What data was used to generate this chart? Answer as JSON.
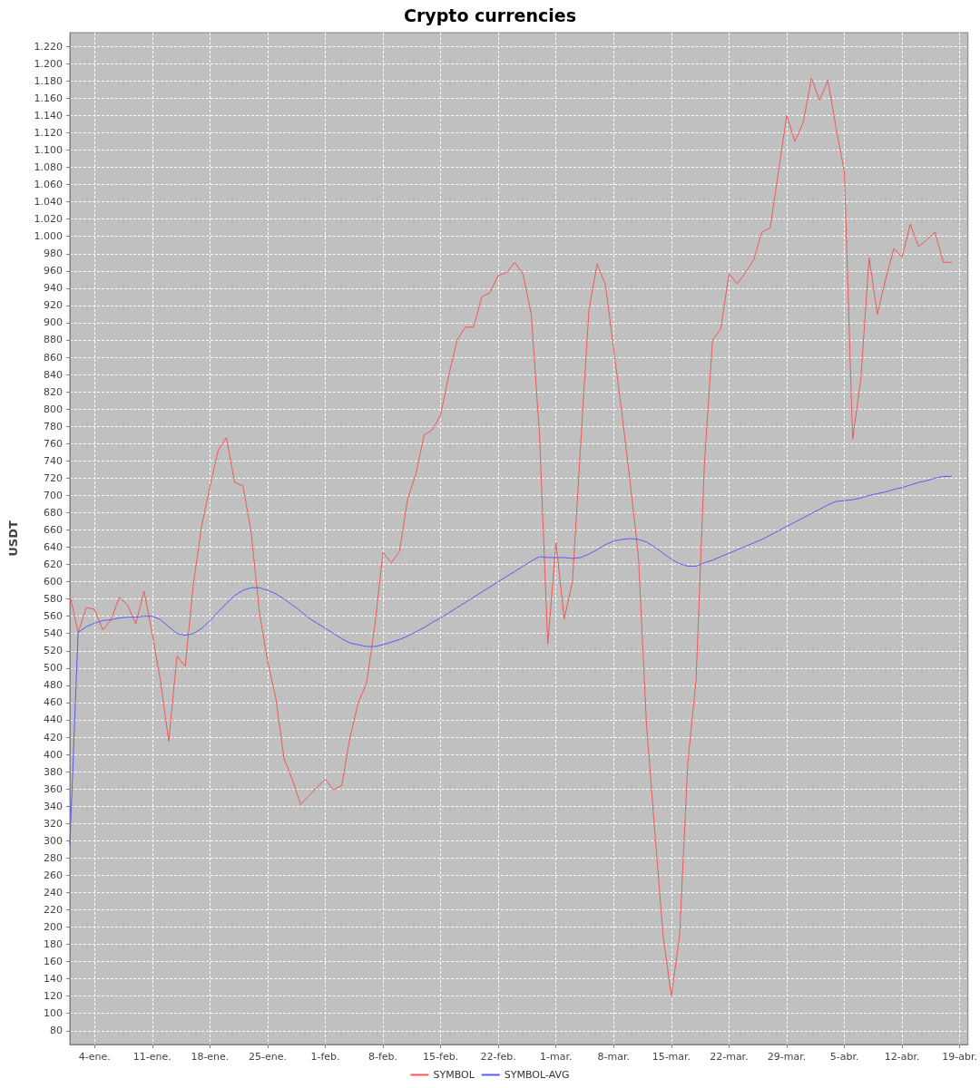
{
  "chart_data": {
    "type": "line",
    "title": "Crypto currencies",
    "ylabel": "USDT",
    "x": [
      "--01-01",
      "--01-02",
      "--01-03",
      "--01-04",
      "--01-05",
      "--01-06",
      "--01-07",
      "--01-08",
      "--01-09",
      "--01-10",
      "--01-11",
      "--01-12",
      "--01-13",
      "--01-14",
      "--01-15",
      "--01-16",
      "--01-17",
      "--01-18",
      "--01-19",
      "--01-20",
      "--01-21",
      "--01-22",
      "--01-23",
      "--01-24",
      "--01-25",
      "--01-26",
      "--01-27",
      "--01-28",
      "--01-29",
      "--01-30",
      "--01-31",
      "--02-01",
      "--02-02",
      "--02-03",
      "--02-04",
      "--02-05",
      "--02-06",
      "--02-07",
      "--02-08",
      "--02-09",
      "--02-10",
      "--02-11",
      "--02-12",
      "--02-13",
      "--02-14",
      "--02-15",
      "--02-16",
      "--02-17",
      "--02-18",
      "--02-19",
      "--02-20",
      "--02-21",
      "--02-22",
      "--02-23",
      "--02-24",
      "--02-25",
      "--02-26",
      "--02-27",
      "--02-28",
      "--03-01",
      "--03-02",
      "--03-03",
      "--03-04",
      "--03-05",
      "--03-06",
      "--03-07",
      "--03-08",
      "--03-09",
      "--03-10",
      "--03-11",
      "--03-12",
      "--03-13",
      "--03-14",
      "--03-15",
      "--03-16",
      "--03-17",
      "--03-18",
      "--03-19",
      "--03-20",
      "--03-21",
      "--03-22",
      "--03-23",
      "--03-24",
      "--03-25",
      "--03-26",
      "--03-27",
      "--03-28",
      "--03-29",
      "--03-30",
      "--03-31",
      "--04-01",
      "--04-02",
      "--04-03",
      "--04-04",
      "--04-05",
      "--04-06",
      "--04-07",
      "--04-08",
      "--04-09",
      "--04-10",
      "--04-11",
      "--04-12",
      "--04-13",
      "--04-14",
      "--04-15",
      "--04-16",
      "--04-17",
      "--04-18"
    ],
    "series": [
      {
        "name": "SYMBOL",
        "color": "#f25757",
        "values": [
          585,
          541,
          570,
          568,
          544,
          556,
          582,
          573,
          551,
          589,
          540,
          485,
          415,
          514,
          502,
          598,
          665,
          710,
          752,
          767,
          715,
          711,
          658,
          565,
          508,
          465,
          395,
          371,
          342,
          352,
          362,
          371,
          359,
          364,
          420,
          460,
          482,
          548,
          634,
          622,
          635,
          696,
          725,
          770,
          776,
          793,
          840,
          880,
          895,
          895,
          930,
          935,
          955,
          958,
          970,
          956,
          910,
          770,
          528,
          645,
          557,
          600,
          760,
          915,
          968,
          944,
          870,
          795,
          715,
          630,
          432,
          310,
          190,
          120,
          190,
          390,
          486,
          734,
          880,
          893,
          957,
          945,
          958,
          973,
          1005,
          1010,
          1075,
          1140,
          1110,
          1132,
          1183,
          1158,
          1181,
          1125,
          1075,
          765,
          835,
          975,
          910,
          950,
          986,
          976,
          1014,
          988,
          996,
          1005,
          970,
          970
        ]
      },
      {
        "name": "SYMBOL-AVG",
        "color": "#5b5bf2",
        "values": [
          295,
          541,
          548,
          552,
          555,
          556,
          558,
          559,
          559,
          560,
          560,
          556,
          548,
          540,
          538,
          540,
          546,
          555,
          565,
          575,
          584,
          590,
          593,
          593,
          590,
          586,
          580,
          573,
          566,
          558,
          552,
          546,
          540,
          534,
          529,
          527,
          525,
          525,
          527,
          530,
          533,
          537,
          542,
          547,
          553,
          558,
          564,
          570,
          576,
          582,
          588,
          594,
          600,
          606,
          612,
          618,
          624,
          629,
          628,
          628,
          628,
          627,
          628,
          632,
          637,
          643,
          647,
          649,
          650,
          649,
          646,
          640,
          633,
          626,
          621,
          618,
          618,
          622,
          625,
          629,
          633,
          637,
          641,
          645,
          649,
          654,
          659,
          664,
          669,
          674,
          679,
          684,
          689,
          693,
          694,
          695,
          697,
          700,
          702,
          704,
          707,
          709,
          712,
          715,
          717,
          720,
          722,
          722
        ]
      }
    ],
    "xlim": [
      "--01-01",
      "--04-20"
    ],
    "xticks": [
      {
        "value": "--01-04",
        "label": "4-ene."
      },
      {
        "value": "--01-11",
        "label": "11-ene."
      },
      {
        "value": "--01-18",
        "label": "18-ene."
      },
      {
        "value": "--01-25",
        "label": "25-ene."
      },
      {
        "value": "--02-01",
        "label": "1-feb."
      },
      {
        "value": "--02-08",
        "label": "8-feb."
      },
      {
        "value": "--02-15",
        "label": "15-feb."
      },
      {
        "value": "--02-22",
        "label": "22-feb."
      },
      {
        "value": "--03-01",
        "label": "1-mar."
      },
      {
        "value": "--03-08",
        "label": "8-mar."
      },
      {
        "value": "--03-15",
        "label": "15-mar."
      },
      {
        "value": "--03-22",
        "label": "22-mar."
      },
      {
        "value": "--03-29",
        "label": "29-mar."
      },
      {
        "value": "--04-05",
        "label": "5-abr."
      },
      {
        "value": "--04-12",
        "label": "12-abr."
      },
      {
        "value": "--04-19",
        "label": "19-abr."
      }
    ],
    "ylim": [
      64,
      1236
    ],
    "yticks": [
      {
        "value": 80,
        "label": "80"
      },
      {
        "value": 100,
        "label": "100"
      },
      {
        "value": 120,
        "label": "120"
      },
      {
        "value": 140,
        "label": "140"
      },
      {
        "value": 160,
        "label": "160"
      },
      {
        "value": 180,
        "label": "180"
      },
      {
        "value": 200,
        "label": "200"
      },
      {
        "value": 220,
        "label": "220"
      },
      {
        "value": 240,
        "label": "240"
      },
      {
        "value": 260,
        "label": "260"
      },
      {
        "value": 280,
        "label": "280"
      },
      {
        "value": 300,
        "label": "300"
      },
      {
        "value": 320,
        "label": "320"
      },
      {
        "value": 340,
        "label": "340"
      },
      {
        "value": 360,
        "label": "360"
      },
      {
        "value": 380,
        "label": "380"
      },
      {
        "value": 400,
        "label": "400"
      },
      {
        "value": 420,
        "label": "420"
      },
      {
        "value": 440,
        "label": "440"
      },
      {
        "value": 460,
        "label": "460"
      },
      {
        "value": 480,
        "label": "480"
      },
      {
        "value": 500,
        "label": "500"
      },
      {
        "value": 520,
        "label": "520"
      },
      {
        "value": 540,
        "label": "540"
      },
      {
        "value": 560,
        "label": "560"
      },
      {
        "value": 580,
        "label": "580"
      },
      {
        "value": 600,
        "label": "600"
      },
      {
        "value": 620,
        "label": "620"
      },
      {
        "value": 640,
        "label": "640"
      },
      {
        "value": 660,
        "label": "660"
      },
      {
        "value": 680,
        "label": "680"
      },
      {
        "value": 700,
        "label": "700"
      },
      {
        "value": 720,
        "label": "720"
      },
      {
        "value": 740,
        "label": "740"
      },
      {
        "value": 760,
        "label": "760"
      },
      {
        "value": 780,
        "label": "780"
      },
      {
        "value": 800,
        "label": "800"
      },
      {
        "value": 820,
        "label": "820"
      },
      {
        "value": 840,
        "label": "840"
      },
      {
        "value": 860,
        "label": "860"
      },
      {
        "value": 880,
        "label": "880"
      },
      {
        "value": 900,
        "label": "900"
      },
      {
        "value": 920,
        "label": "920"
      },
      {
        "value": 940,
        "label": "940"
      },
      {
        "value": 960,
        "label": "960"
      },
      {
        "value": 980,
        "label": "980"
      },
      {
        "value": 1000,
        "label": "1.000"
      },
      {
        "value": 1020,
        "label": "1.020"
      },
      {
        "value": 1040,
        "label": "1.040"
      },
      {
        "value": 1060,
        "label": "1.060"
      },
      {
        "value": 1080,
        "label": "1.080"
      },
      {
        "value": 1100,
        "label": "1.100"
      },
      {
        "value": 1120,
        "label": "1.120"
      },
      {
        "value": 1140,
        "label": "1.140"
      },
      {
        "value": 1160,
        "label": "1.160"
      },
      {
        "value": 1180,
        "label": "1.180"
      },
      {
        "value": 1200,
        "label": "1.200"
      },
      {
        "value": 1220,
        "label": "1.220"
      }
    ],
    "grid": true,
    "legend": "bottom",
    "marker": "none",
    "line_style": "solid"
  }
}
